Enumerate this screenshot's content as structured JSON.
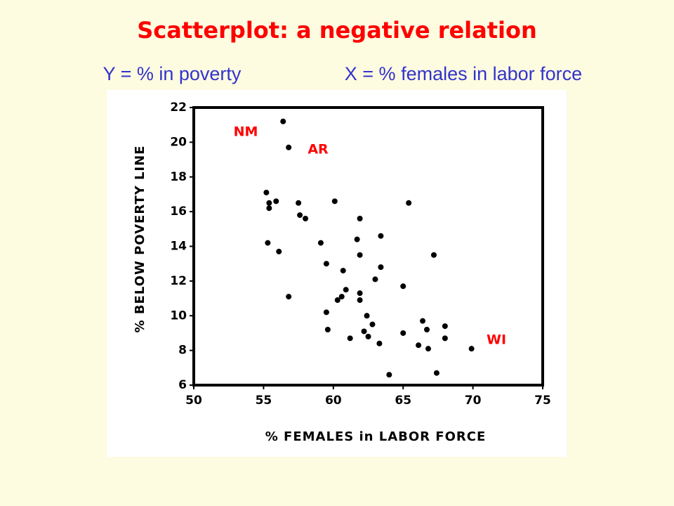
{
  "chart_data": {
    "type": "scatter",
    "title": "Scatterplot: a negative relation",
    "subtitle_y": "Y = % in poverty",
    "subtitle_x": "X = % females in labor force",
    "x_label": "% FEMALES in LABOR FORCE",
    "y_label": "% BELOW POVERTY LINE",
    "annotations": [
      "NM",
      "AR",
      "WI"
    ],
    "color": "#000000",
    "x": [
      56.4,
      56.8,
      55.2,
      55.9,
      55.4,
      55.4,
      57.5,
      57.6,
      58.0,
      55.3,
      56.1,
      56.8,
      60.1,
      61.9,
      65.4,
      63.4,
      61.7,
      59.1,
      61.9,
      67.2,
      59.5,
      60.7,
      63.4,
      63.0,
      65.0,
      60.9,
      61.9,
      60.6,
      60.3,
      61.9,
      59.5,
      62.4,
      62.8,
      66.4,
      68.0,
      59.6,
      62.2,
      65.0,
      66.7,
      62.5,
      61.2,
      63.3,
      68.0,
      66.1,
      66.8,
      69.9,
      67.4,
      64.0
    ],
    "y": [
      21.2,
      19.7,
      17.1,
      16.6,
      16.5,
      16.2,
      16.5,
      15.8,
      15.6,
      14.2,
      13.7,
      11.1,
      16.6,
      15.6,
      16.5,
      14.6,
      14.4,
      14.2,
      13.5,
      13.5,
      13.0,
      12.6,
      12.8,
      12.1,
      11.7,
      11.5,
      11.3,
      11.1,
      10.9,
      10.9,
      10.2,
      10.0,
      9.5,
      9.7,
      9.4,
      9.2,
      9.1,
      9.0,
      9.2,
      8.8,
      8.7,
      8.4,
      8.7,
      8.3,
      8.1,
      8.1,
      6.7,
      6.6
    ],
    "xlim": [
      50,
      75
    ],
    "xticks": [
      50,
      55,
      60,
      65,
      70,
      75
    ],
    "ylim": [
      6,
      22
    ],
    "yticks": [
      6,
      8,
      10,
      12,
      14,
      16,
      18,
      20,
      22
    ],
    "grid": false
  }
}
